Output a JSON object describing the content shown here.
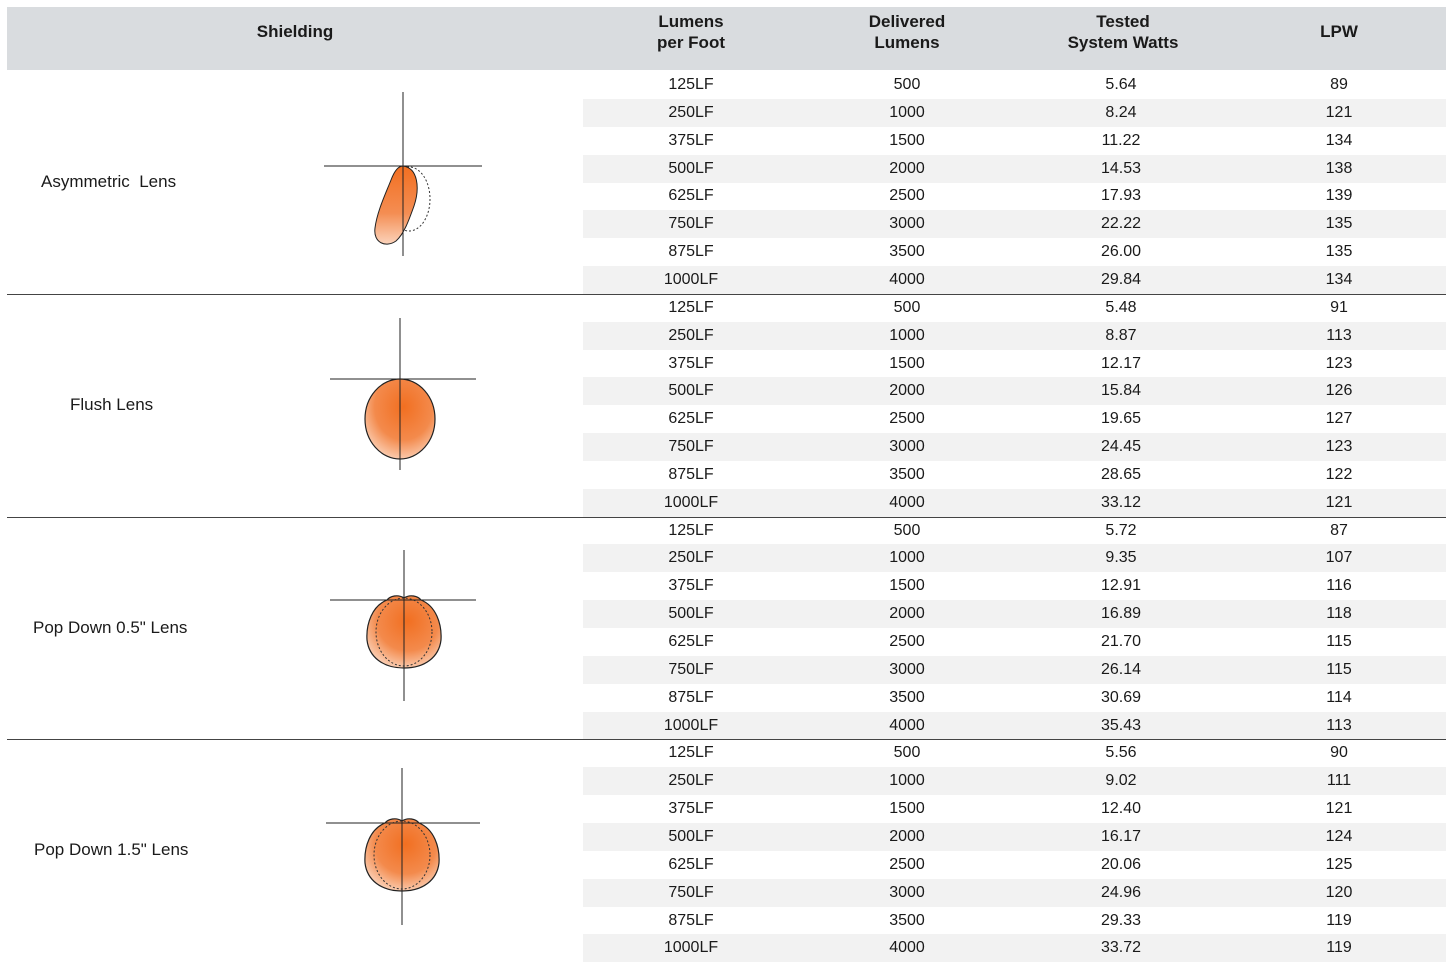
{
  "header": {
    "shielding": "Shielding",
    "lumens_per_foot": "Lumens\nper Foot",
    "delivered_lumens": "Delivered\nLumens",
    "tested_system_watts": "Tested\nSystem Watts",
    "lpw": "LPW"
  },
  "groups": [
    {
      "label": "Asymmetric  Lens",
      "diagram": "asymmetric-distribution-icon",
      "rows": [
        [
          "125LF",
          "500",
          "5.64",
          "89"
        ],
        [
          "250LF",
          "1000",
          "8.24",
          "121"
        ],
        [
          "375LF",
          "1500",
          "11.22",
          "134"
        ],
        [
          "500LF",
          "2000",
          "14.53",
          "138"
        ],
        [
          "625LF",
          "2500",
          "17.93",
          "139"
        ],
        [
          "750LF",
          "3000",
          "22.22",
          "135"
        ],
        [
          "875LF",
          "3500",
          "26.00",
          "135"
        ],
        [
          "1000LF",
          "4000",
          "29.84",
          "134"
        ]
      ]
    },
    {
      "label": "Flush Lens",
      "diagram": "flush-distribution-icon",
      "rows": [
        [
          "125LF",
          "500",
          "5.48",
          "91"
        ],
        [
          "250LF",
          "1000",
          "8.87",
          "113"
        ],
        [
          "375LF",
          "1500",
          "12.17",
          "123"
        ],
        [
          "500LF",
          "2000",
          "15.84",
          "126"
        ],
        [
          "625LF",
          "2500",
          "19.65",
          "127"
        ],
        [
          "750LF",
          "3000",
          "24.45",
          "123"
        ],
        [
          "875LF",
          "3500",
          "28.65",
          "122"
        ],
        [
          "1000LF",
          "4000",
          "33.12",
          "121"
        ]
      ]
    },
    {
      "label": "Pop Down 0.5\" Lens",
      "diagram": "pop-down-distribution-icon",
      "rows": [
        [
          "125LF",
          "500",
          "5.72",
          "87"
        ],
        [
          "250LF",
          "1000",
          "9.35",
          "107"
        ],
        [
          "375LF",
          "1500",
          "12.91",
          "116"
        ],
        [
          "500LF",
          "2000",
          "16.89",
          "118"
        ],
        [
          "625LF",
          "2500",
          "21.70",
          "115"
        ],
        [
          "750LF",
          "3000",
          "26.14",
          "115"
        ],
        [
          "875LF",
          "3500",
          "30.69",
          "114"
        ],
        [
          "1000LF",
          "4000",
          "35.43",
          "113"
        ]
      ]
    },
    {
      "label": "Pop Down 1.5\" Lens",
      "diagram": "pop-down-distribution-icon",
      "rows": [
        [
          "125LF",
          "500",
          "5.56",
          "90"
        ],
        [
          "250LF",
          "1000",
          "9.02",
          "111"
        ],
        [
          "375LF",
          "1500",
          "12.40",
          "121"
        ],
        [
          "500LF",
          "2000",
          "16.17",
          "124"
        ],
        [
          "625LF",
          "2500",
          "20.06",
          "125"
        ],
        [
          "750LF",
          "3000",
          "24.96",
          "120"
        ],
        [
          "875LF",
          "3500",
          "29.33",
          "119"
        ],
        [
          "1000LF",
          "4000",
          "33.72",
          "119"
        ]
      ]
    }
  ],
  "colors": {
    "header_bg": "#d9dcdf",
    "row_stripe": "#f2f2f2",
    "accent_orange": "#f26f21"
  }
}
